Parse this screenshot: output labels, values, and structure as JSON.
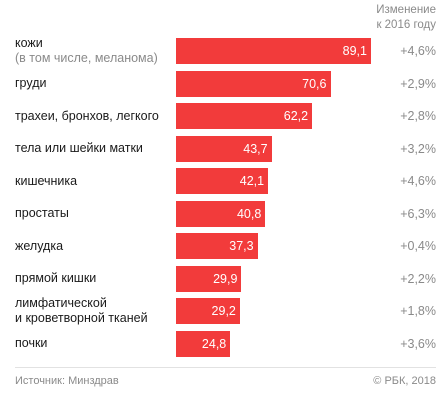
{
  "header": {
    "change_label_line1": "Изменение",
    "change_label_line2": "к 2016 году"
  },
  "chart_data": {
    "type": "bar",
    "orientation": "horizontal",
    "bar_color": "#f23b3b",
    "value_label_color": "#ffffff",
    "categories": [
      {
        "label": "кожи",
        "sublabel": "(в том числе, меланома)"
      },
      {
        "label": "груди",
        "sublabel": ""
      },
      {
        "label": "трахеи, бронхов, легкого",
        "sublabel": ""
      },
      {
        "label": "тела или шейки матки",
        "sublabel": ""
      },
      {
        "label": "кишечника",
        "sublabel": ""
      },
      {
        "label": "простаты",
        "sublabel": ""
      },
      {
        "label": "желудка",
        "sublabel": ""
      },
      {
        "label": "прямой кишки",
        "sublabel": ""
      },
      {
        "label": "лимфатической",
        "sublabel": "и кроветворной тканей"
      },
      {
        "label": "почки",
        "sublabel": ""
      }
    ],
    "values": [
      89.1,
      70.6,
      62.2,
      43.7,
      42.1,
      40.8,
      37.3,
      29.9,
      29.2,
      24.8
    ],
    "value_labels": [
      "89,1",
      "70,6",
      "62,2",
      "43,7",
      "42,1",
      "40,8",
      "37,3",
      "29,9",
      "29,2",
      "24,8"
    ],
    "changes": [
      "+4,6%",
      "+2,9%",
      "+2,8%",
      "+3,2%",
      "+4,6%",
      "+6,3%",
      "+0,4%",
      "+2,2%",
      "+1,8%",
      "+3,6%"
    ],
    "xlim": [
      0,
      89.1
    ]
  },
  "footer": {
    "source": "Источник: Минздрав",
    "credit": "© РБК, 2018"
  }
}
